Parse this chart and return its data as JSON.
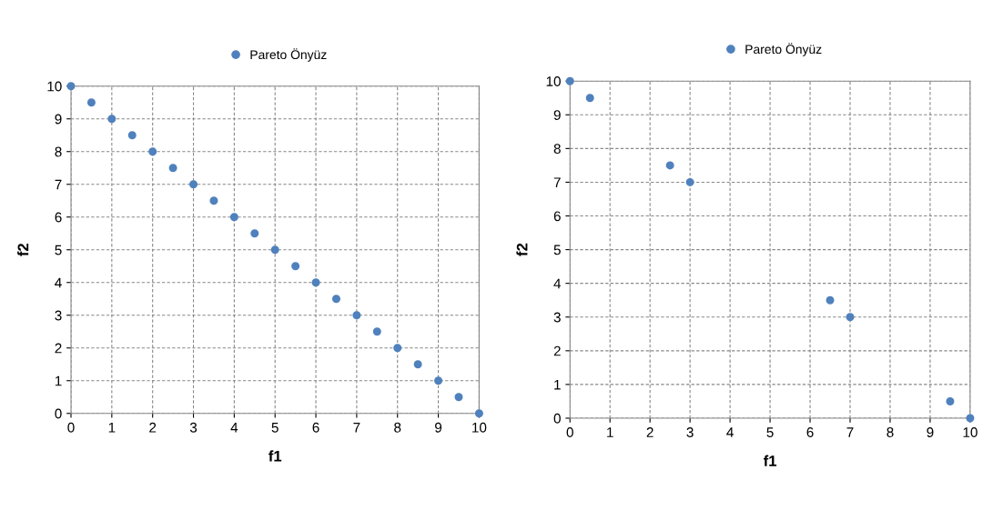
{
  "chart_data": [
    {
      "type": "scatter",
      "xlabel": "f1",
      "ylabel": "f2",
      "xlim": [
        0,
        10
      ],
      "ylim": [
        0,
        10
      ],
      "xticks": [
        0,
        1,
        2,
        3,
        4,
        5,
        6,
        7,
        8,
        9,
        10
      ],
      "yticks": [
        0,
        1,
        2,
        3,
        4,
        5,
        6,
        7,
        8,
        9,
        10
      ],
      "grid": true,
      "legend": "top",
      "marker": "circle",
      "series": [
        {
          "name": "Pareto Önyüz",
          "color": "#4f81bd",
          "x": [
            0,
            0.5,
            1,
            1.5,
            2,
            2.5,
            3,
            3.5,
            4,
            4.5,
            5,
            5.5,
            6,
            6.5,
            7,
            7.5,
            8,
            8.5,
            9,
            9.5,
            10
          ],
          "values": [
            10,
            9.5,
            9,
            8.5,
            8,
            7.5,
            7,
            6.5,
            6,
            5.5,
            5,
            4.5,
            4,
            3.5,
            3,
            2.5,
            2,
            1.5,
            1,
            0.5,
            0
          ]
        }
      ]
    },
    {
      "type": "scatter",
      "xlabel": "f1",
      "ylabel": "f2",
      "xlim": [
        0,
        10
      ],
      "ylim": [
        0,
        10
      ],
      "xticks": [
        0,
        1,
        2,
        3,
        4,
        5,
        6,
        7,
        8,
        9,
        10
      ],
      "yticks": [
        0,
        1,
        2,
        3,
        4,
        5,
        6,
        7,
        8,
        9,
        10
      ],
      "grid": true,
      "legend": "top",
      "marker": "circle",
      "series": [
        {
          "name": "Pareto Önyüz",
          "color": "#4f81bd",
          "x": [
            0,
            0.5,
            2.5,
            3,
            6.5,
            7,
            9.5,
            10
          ],
          "values": [
            10,
            9.5,
            7.5,
            7,
            3.5,
            3,
            0.5,
            0
          ]
        }
      ]
    }
  ]
}
